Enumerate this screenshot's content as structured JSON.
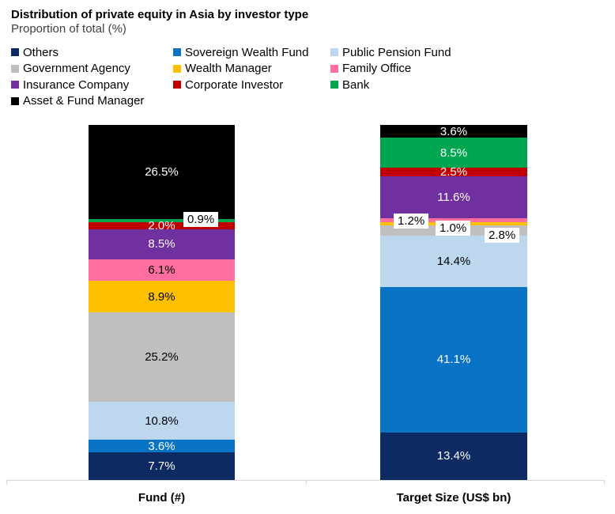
{
  "title": "Distribution of private equity in Asia by investor type",
  "subtitle": "Proportion of total (%)",
  "chart_data": {
    "type": "bar",
    "stacked": true,
    "orientation": "vertical",
    "unit": "%",
    "legend_position": "top",
    "grid": false,
    "ylim": [
      0,
      100
    ],
    "categories": [
      "Fund (#)",
      "Target Size (US$ bn)"
    ],
    "series": [
      {
        "name": "Others",
        "color": "#0E2A63",
        "values": [
          7.7,
          13.4
        ]
      },
      {
        "name": "Sovereign Wealth Fund",
        "color": "#0973C6",
        "values": [
          3.6,
          41.1
        ]
      },
      {
        "name": "Public Pension Fund",
        "color": "#BDD7EE",
        "values": [
          10.8,
          14.4
        ]
      },
      {
        "name": "Government Agency",
        "color": "#BFBFBF",
        "values": [
          25.2,
          2.8
        ]
      },
      {
        "name": "Wealth Manager",
        "color": "#FFC000",
        "values": [
          8.9,
          1.0
        ]
      },
      {
        "name": "Family Office",
        "color": "#FF6E9E",
        "values": [
          6.1,
          1.2
        ]
      },
      {
        "name": "Insurance Company",
        "color": "#7030A0",
        "values": [
          8.5,
          11.6
        ]
      },
      {
        "name": "Corporate Investor",
        "color": "#C00000",
        "values": [
          2.0,
          2.5
        ]
      },
      {
        "name": "Bank",
        "color": "#00A64F",
        "values": [
          0.9,
          8.5
        ]
      },
      {
        "name": "Asset & Fund Manager",
        "color": "#000000",
        "values": [
          26.5,
          3.6
        ]
      }
    ],
    "data_labels": {
      "format": "0.0%",
      "callouts": [
        "Fund (#): Bank 0.9%",
        "Target Size (US$ bn): Family Office 1.2%",
        "Target Size (US$ bn): Wealth Manager 1.0%",
        "Target Size (US$ bn): Government Agency 2.8%"
      ]
    }
  }
}
